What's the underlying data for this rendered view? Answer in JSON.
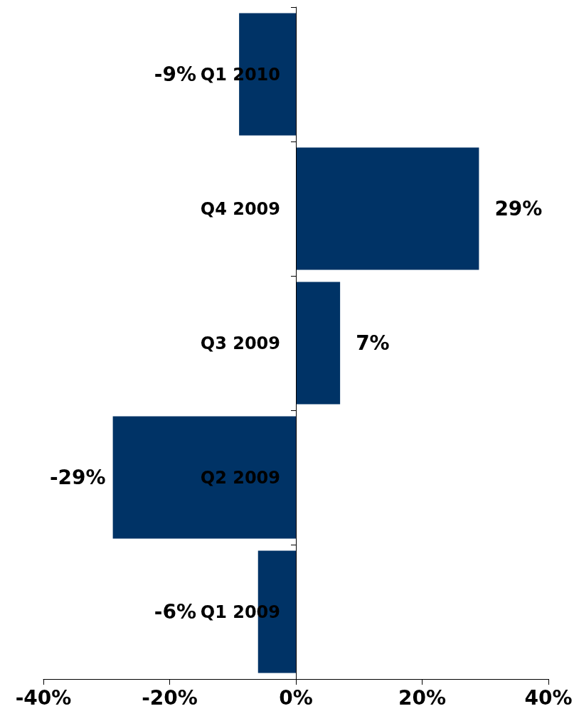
{
  "chart_data": {
    "type": "bar",
    "orientation": "horizontal",
    "categories": [
      "Q1 2010",
      "Q4 2009",
      "Q3 2009",
      "Q2 2009",
      "Q1 2009"
    ],
    "values": [
      -9,
      29,
      7,
      -29,
      -6
    ],
    "value_labels": [
      "-9%",
      "29%",
      "7%",
      "-29%",
      "-6%"
    ],
    "color": "#003366",
    "xlim": [
      -40,
      40
    ],
    "xticks": [
      {
        "value": -40,
        "label": "-40%"
      },
      {
        "value": -20,
        "label": "-20%"
      },
      {
        "value": 0,
        "label": "0%"
      },
      {
        "value": 20,
        "label": "20%"
      },
      {
        "value": 40,
        "label": "40%"
      }
    ]
  }
}
